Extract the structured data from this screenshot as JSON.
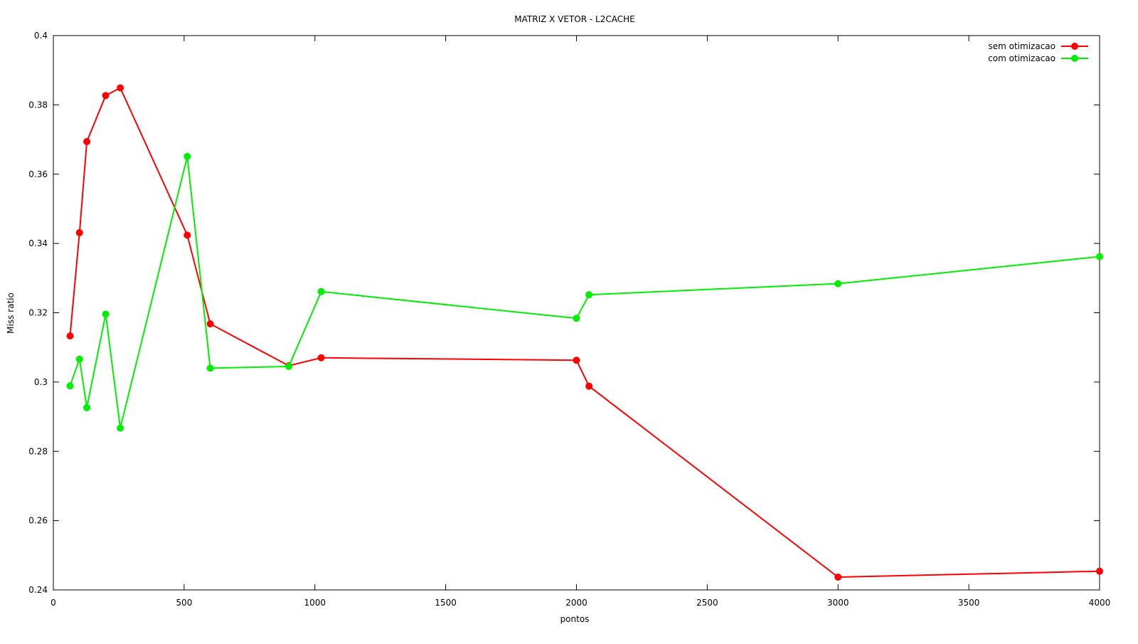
{
  "chart_data": {
    "type": "line",
    "title": "MATRIZ X VETOR - L2CACHE",
    "xlabel": "pontos",
    "ylabel": "Miss ratio",
    "xlim": [
      0,
      4000
    ],
    "ylim": [
      0.24,
      0.4
    ],
    "x_ticks": [
      0,
      500,
      1000,
      1500,
      2000,
      2500,
      3000,
      3500,
      4000
    ],
    "x_tick_labels": [
      "0",
      "500",
      "1000",
      "1500",
      "2000",
      "2500",
      "3000",
      "3500",
      "4000"
    ],
    "y_ticks": [
      0.24,
      0.26,
      0.28,
      0.3,
      0.32,
      0.34,
      0.36,
      0.38,
      0.4
    ],
    "y_tick_labels": [
      "0.24",
      "0.26",
      "0.28",
      "0.3",
      "0.32",
      "0.34",
      "0.36",
      "0.38",
      "0.4"
    ],
    "grid": false,
    "legend_position": "top-right",
    "series": [
      {
        "name": "sem otimizacao",
        "color": "#ff0000",
        "points": [
          [
            64,
            0.3133
          ],
          [
            100,
            0.3431
          ],
          [
            128,
            0.3694
          ],
          [
            200,
            0.3827
          ],
          [
            256,
            0.3849
          ],
          [
            512,
            0.3424
          ],
          [
            600,
            0.3168
          ],
          [
            900,
            0.3047
          ],
          [
            1024,
            0.307
          ],
          [
            2000,
            0.3063
          ],
          [
            2048,
            0.2988
          ],
          [
            3000,
            0.2437
          ],
          [
            4000,
            0.2454
          ]
        ]
      },
      {
        "name": "com otimizacao",
        "color": "#00ee00",
        "points": [
          [
            64,
            0.2989
          ],
          [
            100,
            0.3066
          ],
          [
            128,
            0.2926
          ],
          [
            200,
            0.3196
          ],
          [
            256,
            0.2867
          ],
          [
            512,
            0.3651
          ],
          [
            600,
            0.304
          ],
          [
            900,
            0.3045
          ],
          [
            1024,
            0.3261
          ],
          [
            2000,
            0.3184
          ],
          [
            2048,
            0.3252
          ],
          [
            3000,
            0.3284
          ],
          [
            4000,
            0.3362
          ]
        ]
      }
    ]
  }
}
